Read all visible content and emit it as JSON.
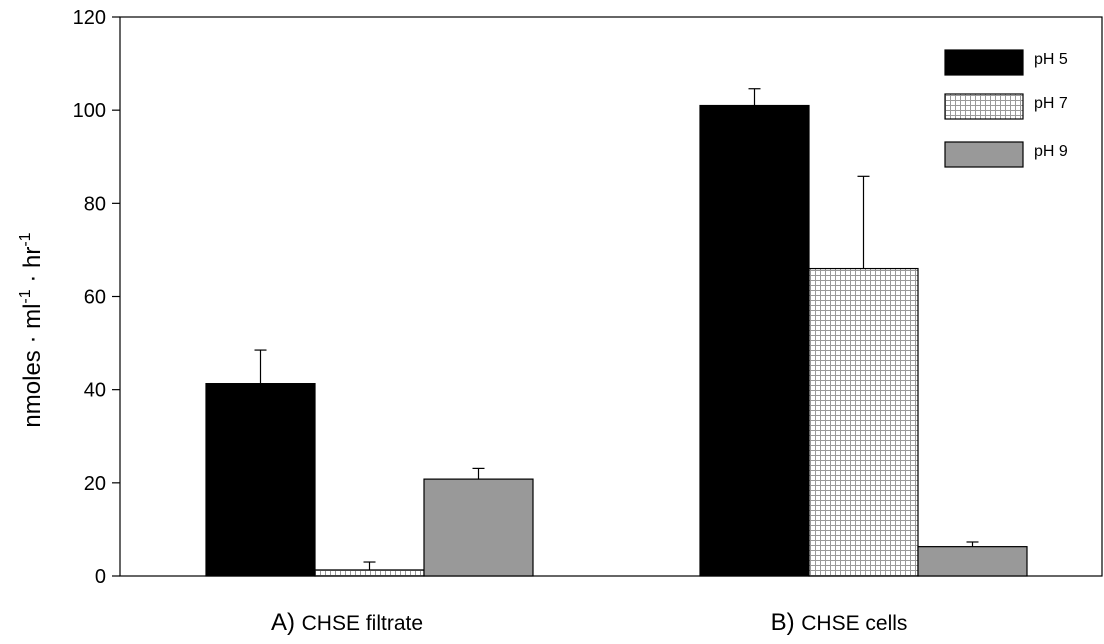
{
  "chart_data": {
    "type": "bar",
    "title": "",
    "xlabel": "",
    "ylabel": "nmoles · ml-1 · hr-1",
    "ylabel_parts": {
      "a": "nmoles · ml",
      "sup1": "-1",
      "b": " · hr",
      "sup2": "-1"
    },
    "ylim": [
      0,
      120
    ],
    "yticks": [
      0,
      20,
      40,
      60,
      80,
      100,
      120
    ],
    "grid": false,
    "legend_position": "top-right",
    "categories": [
      {
        "prefix": "A)",
        "name": "CHSE filtrate"
      },
      {
        "prefix": "B)",
        "name": "CHSE cells"
      }
    ],
    "series": [
      {
        "name": "pH 5",
        "values": [
          41.3,
          101.0
        ],
        "errors": [
          7.2,
          3.6
        ],
        "fill": "solid-black",
        "color": "#000000"
      },
      {
        "name": "pH 7",
        "values": [
          1.3,
          66.0
        ],
        "errors": [
          1.7,
          19.8
        ],
        "fill": "crosshatch",
        "color": "#ffffff"
      },
      {
        "name": "pH 9",
        "values": [
          20.8,
          6.3
        ],
        "errors": [
          2.3,
          1.0
        ],
        "fill": "solid-gray",
        "color": "#999999"
      }
    ]
  }
}
